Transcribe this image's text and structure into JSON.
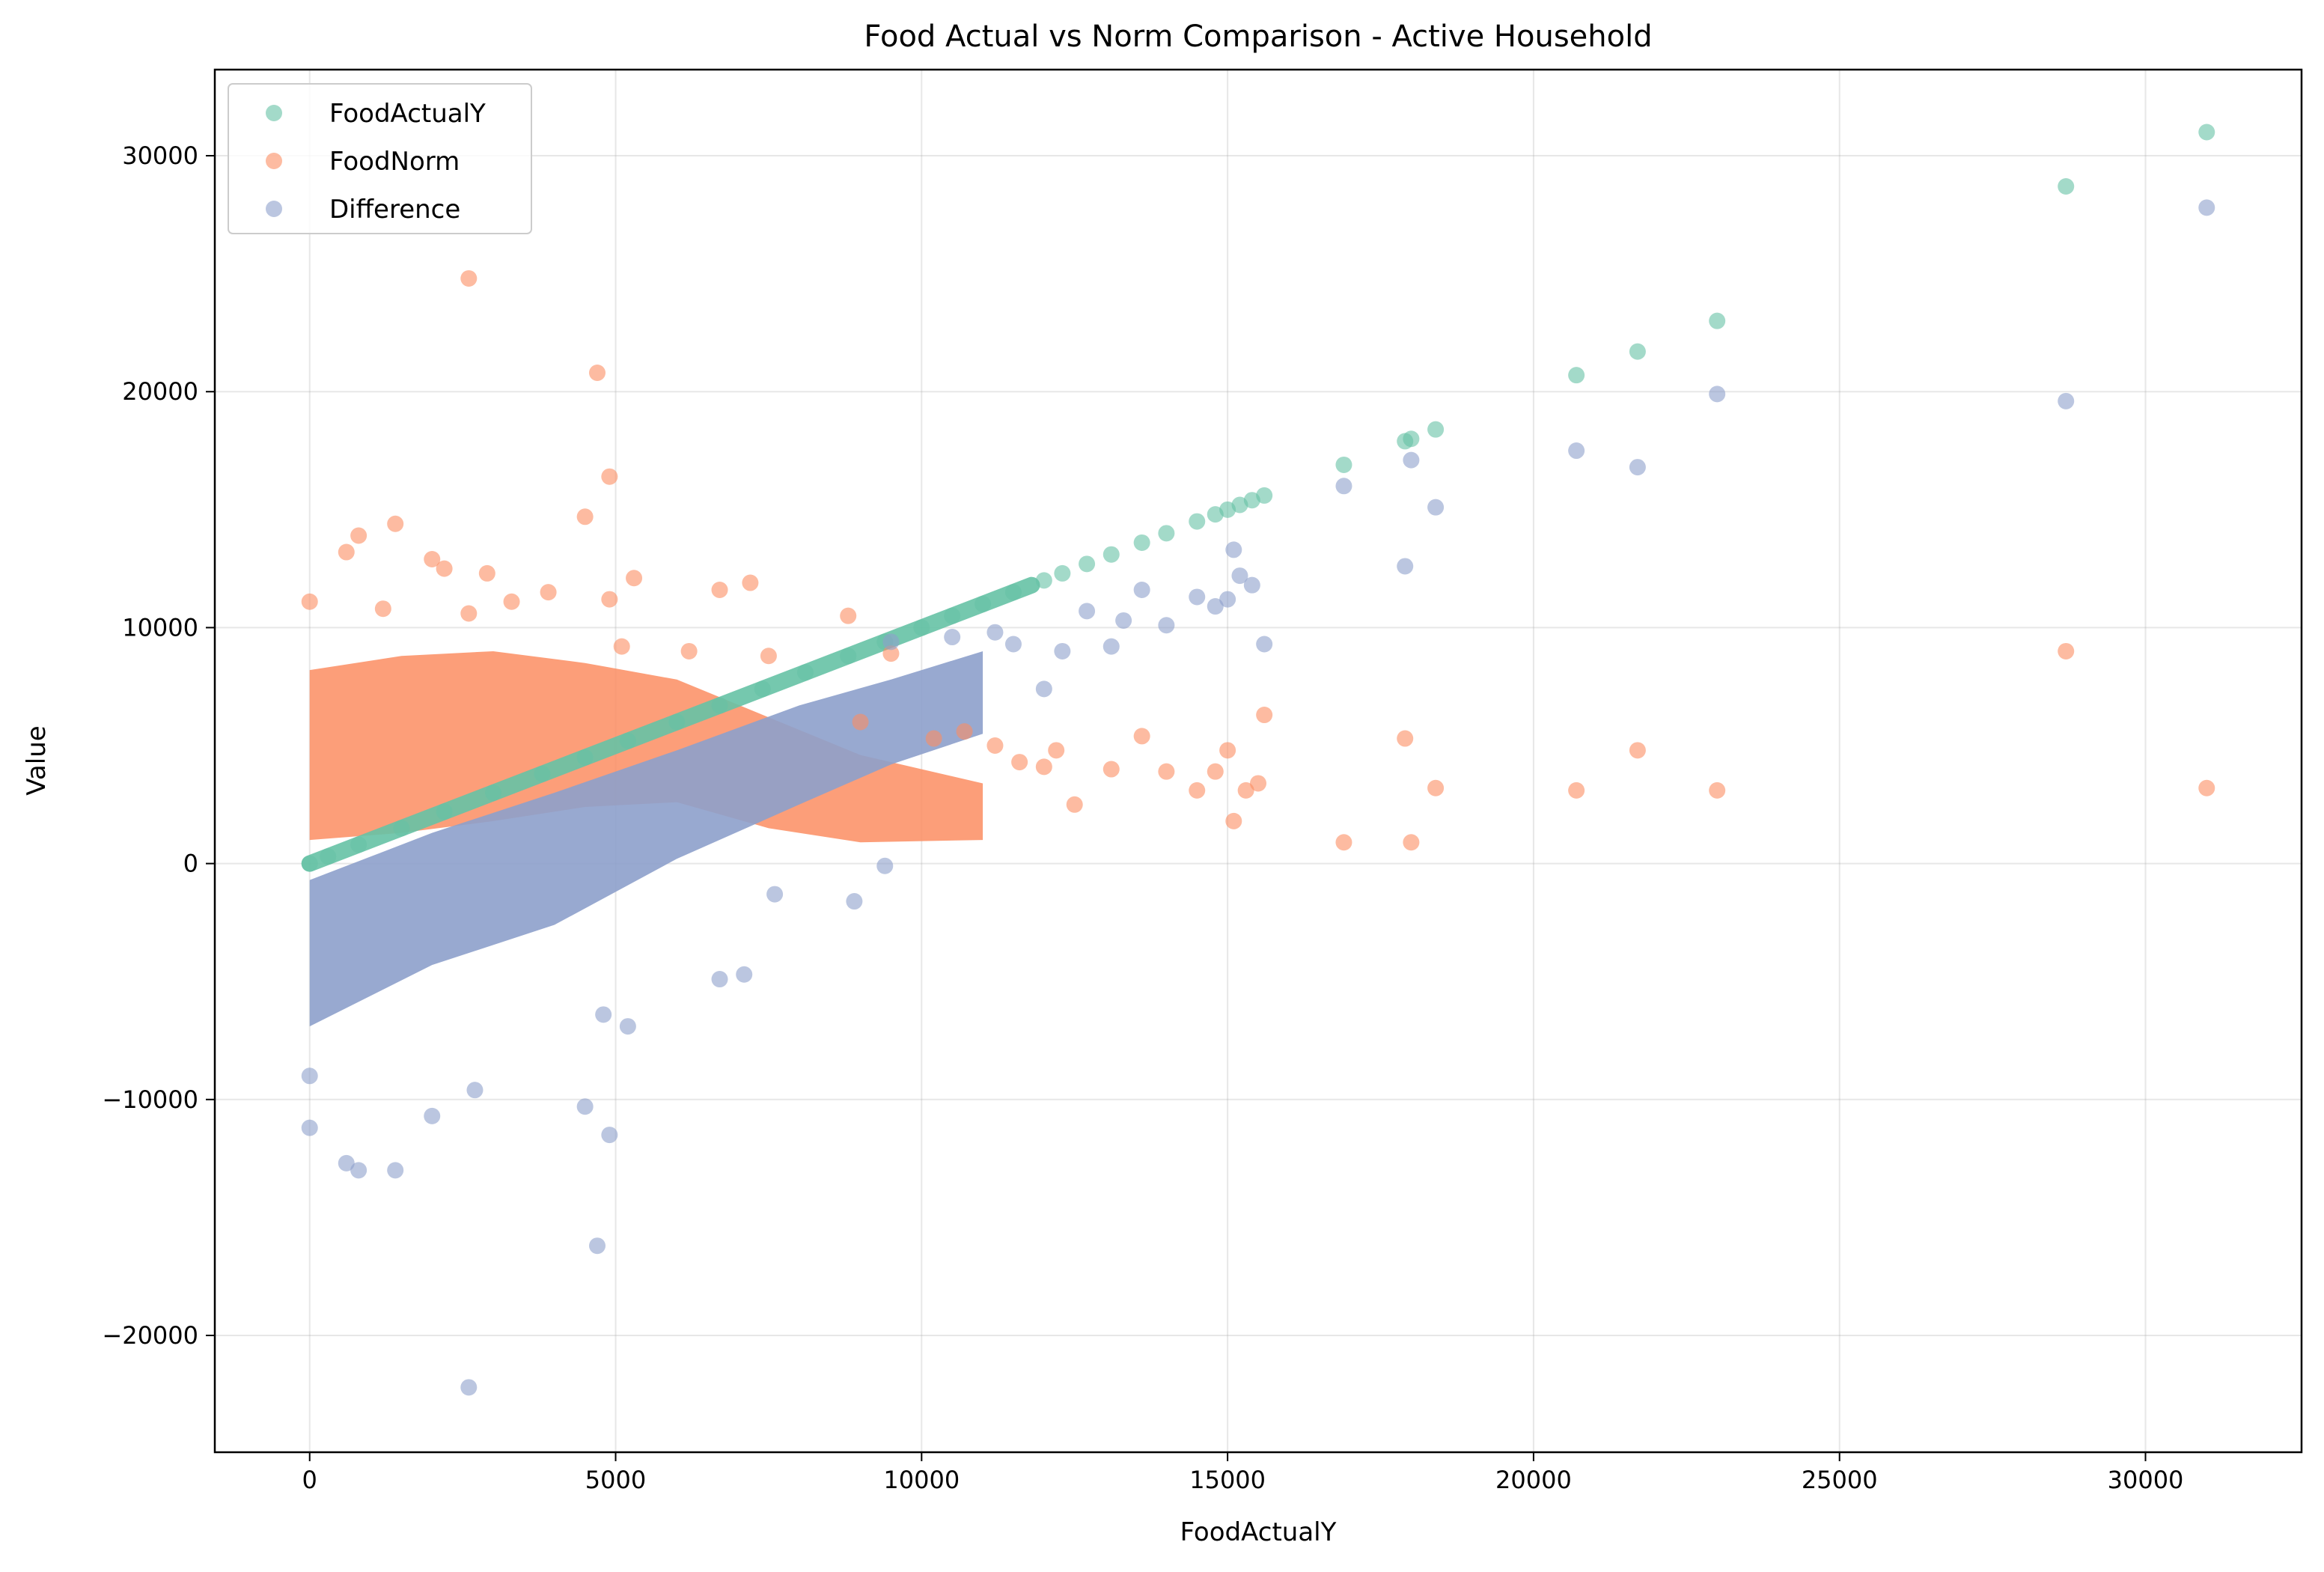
{
  "chart_data": {
    "type": "scatter",
    "title": "Food Actual vs Norm Comparison - Active Household",
    "xlabel": "FoodActualY",
    "ylabel": "Value",
    "xlim": [
      -1550,
      32550
    ],
    "ylim": [
      -24950,
      33650
    ],
    "xticks": [
      0,
      5000,
      10000,
      15000,
      20000,
      25000,
      30000
    ],
    "yticks": [
      -20000,
      -10000,
      0,
      10000,
      20000,
      30000
    ],
    "grid": true,
    "legend_position": "top-left",
    "series": [
      {
        "name": "FoodActualY",
        "color": "#66c2a5",
        "points": [
          [
            0,
            0
          ],
          [
            300,
            300
          ],
          [
            800,
            800
          ],
          [
            1500,
            1500
          ],
          [
            2200,
            2200
          ],
          [
            3000,
            3000
          ],
          [
            3800,
            3800
          ],
          [
            4500,
            4500
          ],
          [
            5200,
            5200
          ],
          [
            6000,
            6000
          ],
          [
            6700,
            6700
          ],
          [
            7400,
            7400
          ],
          [
            8100,
            8100
          ],
          [
            8800,
            8800
          ],
          [
            9400,
            9400
          ],
          [
            10000,
            10000
          ],
          [
            10500,
            10500
          ],
          [
            11000,
            11000
          ],
          [
            11500,
            11500
          ],
          [
            12000,
            12000
          ],
          [
            12300,
            12300
          ],
          [
            12700,
            12700
          ],
          [
            13100,
            13100
          ],
          [
            13600,
            13600
          ],
          [
            14000,
            14000
          ],
          [
            14500,
            14500
          ],
          [
            14800,
            14800
          ],
          [
            15000,
            15000
          ],
          [
            15200,
            15200
          ],
          [
            15400,
            15400
          ],
          [
            15600,
            15600
          ],
          [
            16900,
            16900
          ],
          [
            17900,
            17900
          ],
          [
            18000,
            18000
          ],
          [
            18400,
            18400
          ],
          [
            20700,
            20700
          ],
          [
            21700,
            21700
          ],
          [
            23000,
            23000
          ],
          [
            28700,
            28700
          ],
          [
            31000,
            31000
          ]
        ]
      },
      {
        "name": "FoodNorm",
        "color": "#fc8d62",
        "points": [
          [
            2600,
            24800
          ],
          [
            4700,
            20800
          ],
          [
            4900,
            16400
          ],
          [
            4500,
            14700
          ],
          [
            1400,
            14400
          ],
          [
            800,
            13900
          ],
          [
            600,
            13200
          ],
          [
            2000,
            12900
          ],
          [
            2200,
            12500
          ],
          [
            2900,
            12300
          ],
          [
            5300,
            12100
          ],
          [
            7200,
            11900
          ],
          [
            6700,
            11600
          ],
          [
            3900,
            11500
          ],
          [
            4900,
            11200
          ],
          [
            0,
            11100
          ],
          [
            3300,
            11100
          ],
          [
            1200,
            10800
          ],
          [
            2600,
            10600
          ],
          [
            8800,
            10500
          ],
          [
            5100,
            9200
          ],
          [
            6200,
            9000
          ],
          [
            7500,
            8800
          ],
          [
            9500,
            8900
          ],
          [
            9000,
            6000
          ],
          [
            10200,
            5300
          ],
          [
            10700,
            5600
          ],
          [
            11200,
            5000
          ],
          [
            11600,
            4300
          ],
          [
            12000,
            4100
          ],
          [
            12200,
            4800
          ],
          [
            12500,
            2500
          ],
          [
            13100,
            4000
          ],
          [
            13600,
            5400
          ],
          [
            14000,
            3900
          ],
          [
            14500,
            3100
          ],
          [
            14800,
            3900
          ],
          [
            15000,
            4800
          ],
          [
            15100,
            1800
          ],
          [
            15300,
            3100
          ],
          [
            15500,
            3400
          ],
          [
            15600,
            6300
          ],
          [
            16900,
            900
          ],
          [
            17900,
            5300
          ],
          [
            18000,
            900
          ],
          [
            18400,
            3200
          ],
          [
            20700,
            3100
          ],
          [
            21700,
            4800
          ],
          [
            23000,
            3100
          ],
          [
            28700,
            9000
          ],
          [
            31000,
            3200
          ]
        ]
      },
      {
        "name": "Difference",
        "color": "#8da0cb",
        "points": [
          [
            2600,
            -22200
          ],
          [
            4700,
            -16200
          ],
          [
            0,
            -11200
          ],
          [
            4900,
            -11500
          ],
          [
            4500,
            -10300
          ],
          [
            1400,
            -13000
          ],
          [
            800,
            -13000
          ],
          [
            600,
            -12700
          ],
          [
            2000,
            -10700
          ],
          [
            2700,
            -9600
          ],
          [
            0,
            -9000
          ],
          [
            5200,
            -6900
          ],
          [
            4800,
            -6400
          ],
          [
            6700,
            -4900
          ],
          [
            7100,
            -4700
          ],
          [
            7600,
            -1300
          ],
          [
            8900,
            -1600
          ],
          [
            9400,
            -100
          ],
          [
            9500,
            9400
          ],
          [
            10500,
            9600
          ],
          [
            11200,
            9800
          ],
          [
            11500,
            9300
          ],
          [
            12000,
            7400
          ],
          [
            12300,
            9000
          ],
          [
            12700,
            10700
          ],
          [
            13100,
            9200
          ],
          [
            13300,
            10300
          ],
          [
            13600,
            11600
          ],
          [
            14000,
            10100
          ],
          [
            14500,
            11300
          ],
          [
            14800,
            10900
          ],
          [
            15000,
            11200
          ],
          [
            15100,
            13300
          ],
          [
            15200,
            12200
          ],
          [
            15400,
            11800
          ],
          [
            15600,
            9300
          ],
          [
            16900,
            16000
          ],
          [
            17900,
            12600
          ],
          [
            18000,
            17100
          ],
          [
            18400,
            15100
          ],
          [
            20700,
            17500
          ],
          [
            21700,
            16800
          ],
          [
            23000,
            19900
          ],
          [
            28700,
            19600
          ],
          [
            31000,
            27800
          ]
        ]
      }
    ]
  }
}
